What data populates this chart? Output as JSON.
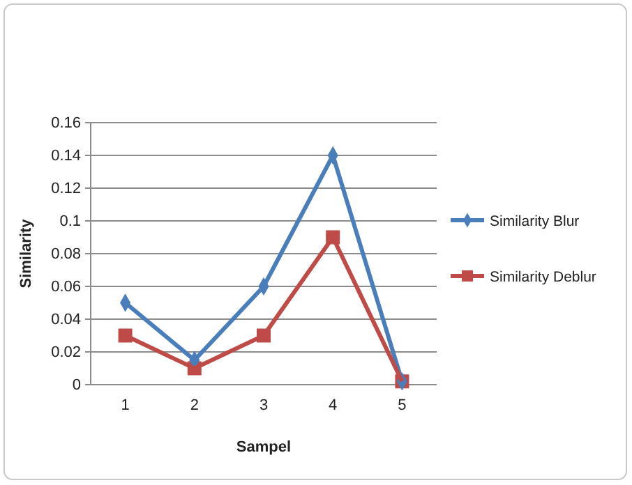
{
  "chart_data": {
    "type": "line",
    "xlabel": "Sampel",
    "ylabel": "Similarity",
    "categories": [
      "1",
      "2",
      "3",
      "4",
      "5"
    ],
    "series": [
      {
        "name": "Similarity Blur",
        "color": "#4a7ebb",
        "marker": "diamond",
        "values": [
          0.05,
          0.015,
          0.06,
          0.14,
          0.002
        ]
      },
      {
        "name": "Similarity Deblur",
        "color": "#be4b48",
        "marker": "square",
        "values": [
          0.03,
          0.01,
          0.03,
          0.09,
          0.002
        ]
      }
    ],
    "ylim": [
      0,
      0.16
    ],
    "yticks": [
      0,
      0.02,
      0.04,
      0.06,
      0.08,
      0.1,
      0.12,
      0.14,
      0.16
    ],
    "grid": "y",
    "legend": "right"
  }
}
